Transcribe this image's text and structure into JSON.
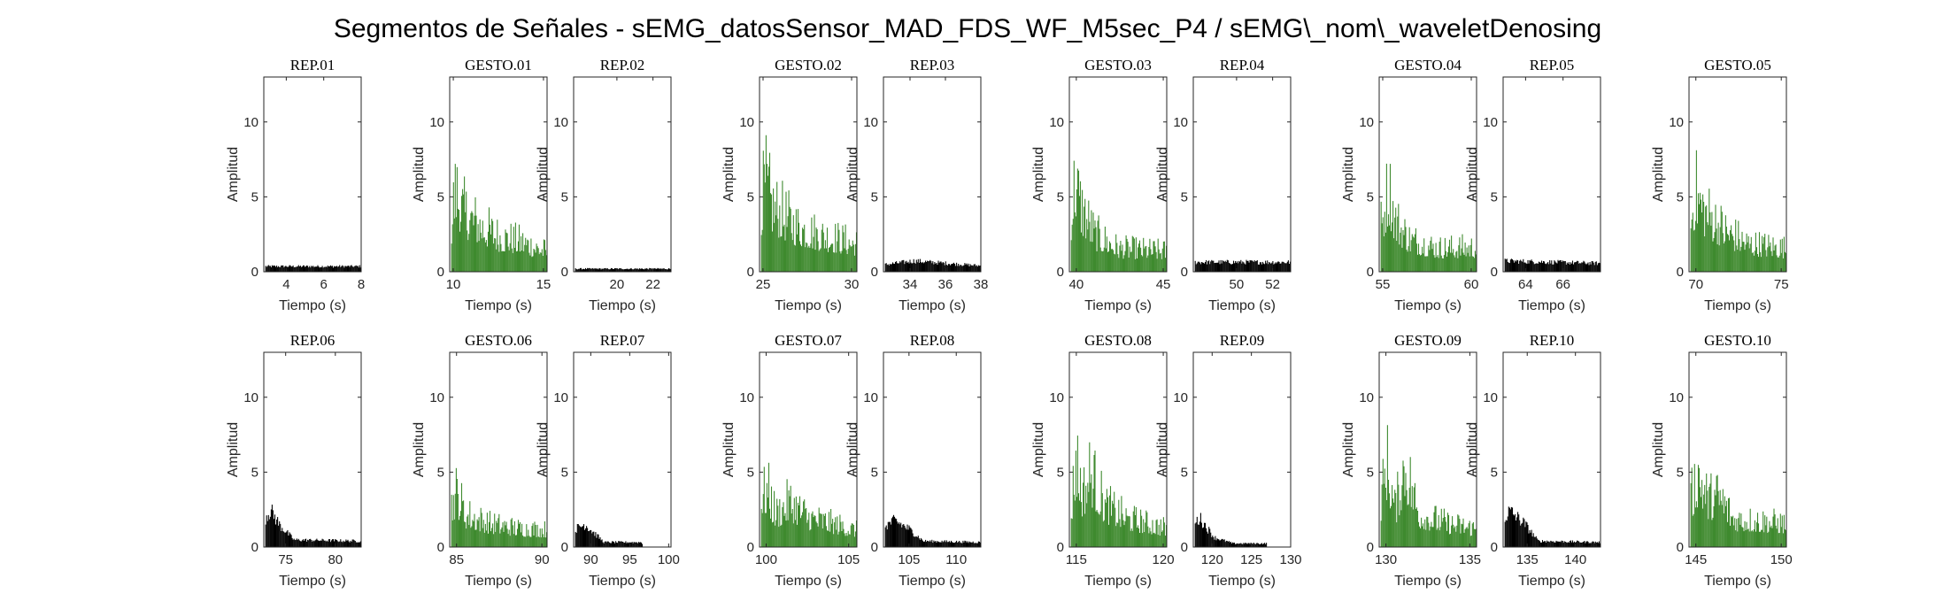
{
  "figure": {
    "title": "Segmentos de Señales - sEMG_datosSensor_MAD_FDS_WF_M5sec_P4 / sEMG\\_nom\\_waveletDenosing"
  },
  "colors": {
    "rep": "#000000",
    "gesto": "#3f8a2f",
    "axes": "#262626"
  },
  "chart_data": {
    "type": "bar",
    "xlabel": "Tiempo (s)",
    "ylabel": "Amplitud",
    "ylim": [
      0,
      13
    ],
    "yticks": [
      0,
      5,
      10
    ],
    "grid": false,
    "panels": [
      {
        "title": "REP_01",
        "kind": "rep",
        "xlim": [
          2.8,
          8.0
        ],
        "xticks": [
          4,
          6,
          8
        ],
        "envelope": [
          {
            "t": 0,
            "a": 0.45
          },
          {
            "t": 1,
            "a": 0.45
          }
        ]
      },
      {
        "title": "GESTO_01",
        "kind": "gesto",
        "xlim": [
          9.8,
          15.2
        ],
        "xticks": [
          10,
          15
        ],
        "envelope": [
          {
            "t": 0,
            "a": 4.5
          },
          {
            "t": 0.02,
            "a": 7.5
          },
          {
            "t": 0.05,
            "a": 8.9
          },
          {
            "t": 0.12,
            "a": 6.5
          },
          {
            "t": 0.3,
            "a": 5.0
          },
          {
            "t": 0.5,
            "a": 3.8
          },
          {
            "t": 0.8,
            "a": 3.0
          },
          {
            "t": 1,
            "a": 2.2
          }
        ]
      },
      {
        "title": "REP_02",
        "kind": "rep",
        "xlim": [
          17.6,
          23.0
        ],
        "xticks": [
          20,
          22
        ],
        "envelope": [
          {
            "t": 0,
            "a": 0.25
          },
          {
            "t": 1,
            "a": 0.25
          }
        ]
      },
      {
        "title": "GESTO_02",
        "kind": "gesto",
        "xlim": [
          24.8,
          30.3
        ],
        "xticks": [
          25,
          30
        ],
        "envelope": [
          {
            "t": 0,
            "a": 7.0
          },
          {
            "t": 0.04,
            "a": 9.6
          },
          {
            "t": 0.12,
            "a": 7.0
          },
          {
            "t": 0.35,
            "a": 5.0
          },
          {
            "t": 0.6,
            "a": 4.0
          },
          {
            "t": 1,
            "a": 3.0
          }
        ]
      },
      {
        "title": "REP_03",
        "kind": "rep",
        "xlim": [
          32.5,
          38.0
        ],
        "xticks": [
          34,
          36,
          38
        ],
        "envelope": [
          {
            "t": 0,
            "a": 0.6
          },
          {
            "t": 0.3,
            "a": 0.9
          },
          {
            "t": 1,
            "a": 0.5
          }
        ]
      },
      {
        "title": "GESTO_03",
        "kind": "gesto",
        "xlim": [
          39.6,
          45.2
        ],
        "xticks": [
          40,
          45
        ],
        "envelope": [
          {
            "t": 0,
            "a": 6.0
          },
          {
            "t": 0.04,
            "a": 9.8
          },
          {
            "t": 0.1,
            "a": 7.0
          },
          {
            "t": 0.25,
            "a": 4.0
          },
          {
            "t": 0.5,
            "a": 2.5
          },
          {
            "t": 1,
            "a": 2.2
          }
        ]
      },
      {
        "title": "REP_04",
        "kind": "rep",
        "xlim": [
          47.6,
          53.0
        ],
        "xticks": [
          50,
          52
        ],
        "envelope": [
          {
            "t": 0,
            "a": 0.8
          },
          {
            "t": 1,
            "a": 0.8
          }
        ]
      },
      {
        "title": "GESTO_04",
        "kind": "gesto",
        "xlim": [
          54.8,
          60.3
        ],
        "xticks": [
          55,
          60
        ],
        "envelope": [
          {
            "t": 0,
            "a": 5.0
          },
          {
            "t": 0.08,
            "a": 9.0
          },
          {
            "t": 0.15,
            "a": 5.5
          },
          {
            "t": 0.3,
            "a": 3.5
          },
          {
            "t": 0.6,
            "a": 2.5
          },
          {
            "t": 1,
            "a": 2.6
          }
        ]
      },
      {
        "title": "REP_05",
        "kind": "rep",
        "xlim": [
          62.8,
          68.0
        ],
        "xticks": [
          64,
          66
        ],
        "envelope": [
          {
            "t": 0,
            "a": 0.9
          },
          {
            "t": 1,
            "a": 0.7
          }
        ]
      },
      {
        "title": "GESTO_05",
        "kind": "gesto",
        "xlim": [
          69.6,
          75.3
        ],
        "xticks": [
          70,
          75
        ],
        "envelope": [
          {
            "t": 0,
            "a": 6.0
          },
          {
            "t": 0.05,
            "a": 8.5
          },
          {
            "t": 0.15,
            "a": 6.5
          },
          {
            "t": 0.35,
            "a": 4.5
          },
          {
            "t": 0.6,
            "a": 3.0
          },
          {
            "t": 1,
            "a": 2.5
          }
        ]
      },
      {
        "title": "REP_06",
        "kind": "rep",
        "xlim": [
          72.8,
          82.6
        ],
        "xticks": [
          75,
          80
        ],
        "envelope": [
          {
            "t": 0,
            "a": 2.5
          },
          {
            "t": 0.05,
            "a": 3.1
          },
          {
            "t": 0.15,
            "a": 1.8
          },
          {
            "t": 0.3,
            "a": 0.6
          },
          {
            "t": 1,
            "a": 0.5
          }
        ]
      },
      {
        "title": "GESTO_06",
        "kind": "gesto",
        "xlim": [
          84.6,
          90.3
        ],
        "xticks": [
          85,
          90
        ],
        "envelope": [
          {
            "t": 0,
            "a": 4.5
          },
          {
            "t": 0.05,
            "a": 5.8
          },
          {
            "t": 0.15,
            "a": 3.5
          },
          {
            "t": 0.4,
            "a": 2.5
          },
          {
            "t": 0.7,
            "a": 2.0
          },
          {
            "t": 1,
            "a": 1.8
          }
        ]
      },
      {
        "title": "REP_07",
        "kind": "rep",
        "xlim": [
          87.8,
          100.3
        ],
        "xticks": [
          90,
          95,
          100
        ],
        "envelope": [
          {
            "t": 0,
            "a": 1.5
          },
          {
            "t": 0.1,
            "a": 1.9
          },
          {
            "t": 0.22,
            "a": 1.0
          },
          {
            "t": 0.3,
            "a": 0.4
          },
          {
            "t": 0.7,
            "a": 0.4
          },
          {
            "t": 0.71,
            "a": 0
          },
          {
            "t": 1,
            "a": 0
          }
        ]
      },
      {
        "title": "GESTO_07",
        "kind": "gesto",
        "xlim": [
          99.6,
          105.5
        ],
        "xticks": [
          100,
          105
        ],
        "envelope": [
          {
            "t": 0,
            "a": 5.0
          },
          {
            "t": 0.06,
            "a": 6.2
          },
          {
            "t": 0.15,
            "a": 3.5
          },
          {
            "t": 0.3,
            "a": 4.8
          },
          {
            "t": 0.5,
            "a": 3.2
          },
          {
            "t": 1,
            "a": 1.8
          }
        ]
      },
      {
        "title": "REP_08",
        "kind": "rep",
        "xlim": [
          102.3,
          112.6
        ],
        "xticks": [
          105,
          110
        ],
        "envelope": [
          {
            "t": 0,
            "a": 1.8
          },
          {
            "t": 0.1,
            "a": 2.2
          },
          {
            "t": 0.25,
            "a": 1.5
          },
          {
            "t": 0.4,
            "a": 0.5
          },
          {
            "t": 1,
            "a": 0.4
          }
        ]
      },
      {
        "title": "GESTO_08",
        "kind": "gesto",
        "xlim": [
          114.6,
          120.2
        ],
        "xticks": [
          115,
          120
        ],
        "envelope": [
          {
            "t": 0,
            "a": 4.0
          },
          {
            "t": 0.05,
            "a": 9.5
          },
          {
            "t": 0.12,
            "a": 5.5
          },
          {
            "t": 0.2,
            "a": 8.0
          },
          {
            "t": 0.35,
            "a": 4.5
          },
          {
            "t": 0.6,
            "a": 3.0
          },
          {
            "t": 1,
            "a": 2.0
          }
        ]
      },
      {
        "title": "REP_09",
        "kind": "rep",
        "xlim": [
          117.6,
          130.0
        ],
        "xticks": [
          120,
          125,
          130
        ],
        "envelope": [
          {
            "t": 0,
            "a": 2.0
          },
          {
            "t": 0.05,
            "a": 2.4
          },
          {
            "t": 0.2,
            "a": 0.8
          },
          {
            "t": 0.4,
            "a": 0.3
          },
          {
            "t": 0.75,
            "a": 0.3
          },
          {
            "t": 0.76,
            "a": 0
          },
          {
            "t": 1,
            "a": 0
          }
        ]
      },
      {
        "title": "GESTO_09",
        "kind": "gesto",
        "xlim": [
          129.6,
          135.4
        ],
        "xticks": [
          130,
          135
        ],
        "envelope": [
          {
            "t": 0,
            "a": 5.0
          },
          {
            "t": 0.06,
            "a": 9.0
          },
          {
            "t": 0.15,
            "a": 4.0
          },
          {
            "t": 0.25,
            "a": 8.8
          },
          {
            "t": 0.4,
            "a": 3.5
          },
          {
            "t": 0.7,
            "a": 2.5
          },
          {
            "t": 1,
            "a": 2.0
          }
        ]
      },
      {
        "title": "REP_10",
        "kind": "rep",
        "xlim": [
          132.5,
          142.6
        ],
        "xticks": [
          135,
          140
        ],
        "envelope": [
          {
            "t": 0,
            "a": 2.5
          },
          {
            "t": 0.05,
            "a": 3.0
          },
          {
            "t": 0.2,
            "a": 2.0
          },
          {
            "t": 0.35,
            "a": 0.5
          },
          {
            "t": 1,
            "a": 0.4
          }
        ]
      },
      {
        "title": "GESTO_10",
        "kind": "gesto",
        "xlim": [
          144.6,
          150.3
        ],
        "xticks": [
          145,
          150
        ],
        "envelope": [
          {
            "t": 0,
            "a": 5.0
          },
          {
            "t": 0.08,
            "a": 8.0
          },
          {
            "t": 0.18,
            "a": 5.0
          },
          {
            "t": 0.3,
            "a": 5.5
          },
          {
            "t": 0.45,
            "a": 3.0
          },
          {
            "t": 1,
            "a": 2.5
          }
        ]
      }
    ]
  }
}
